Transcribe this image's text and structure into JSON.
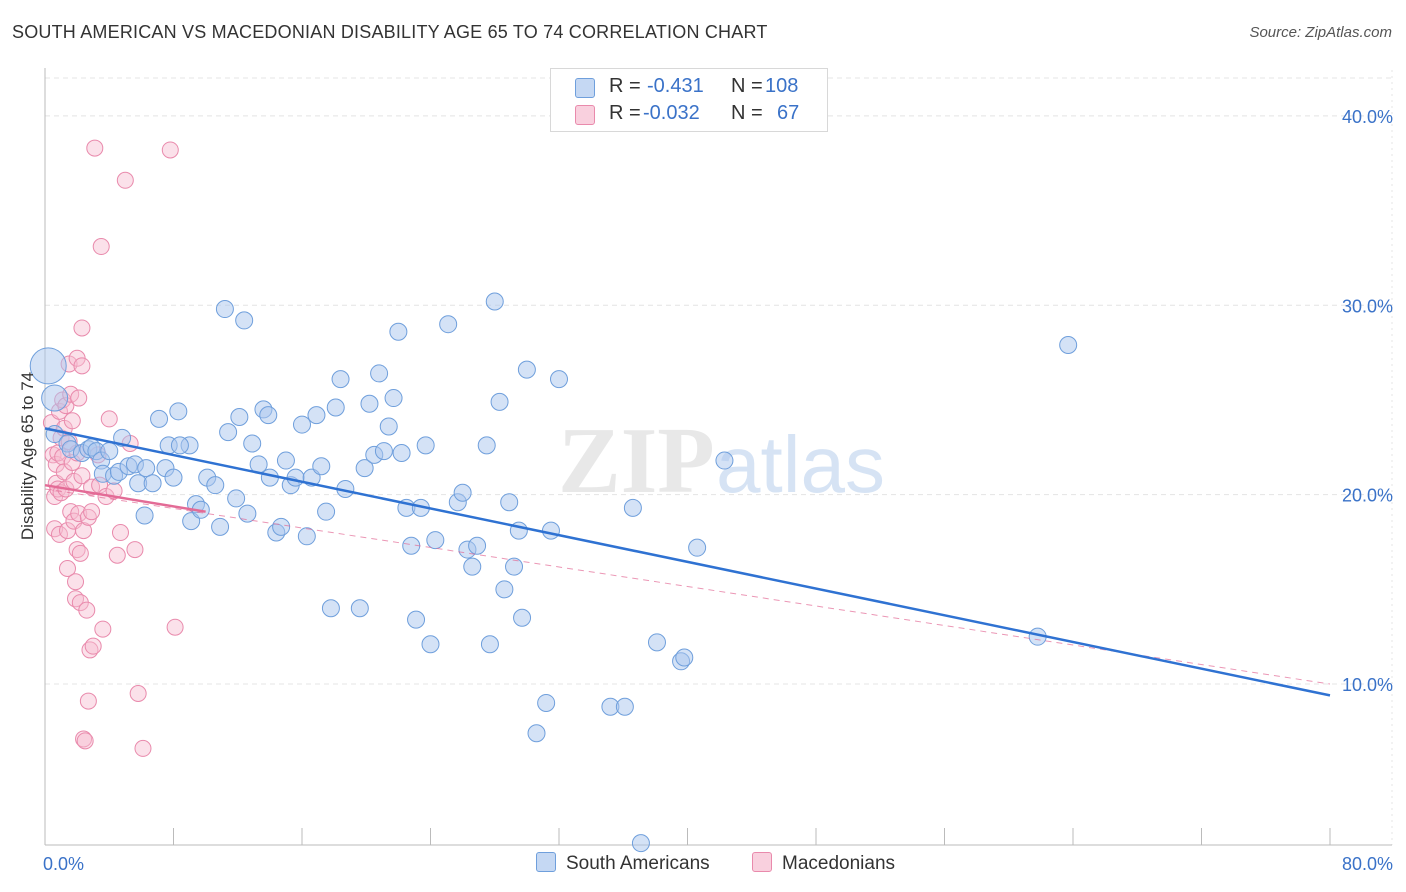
{
  "title": "SOUTH AMERICAN VS MACEDONIAN DISABILITY AGE 65 TO 74 CORRELATION CHART",
  "source": "Source: ZipAtlas.com",
  "watermark": {
    "zip": "ZIP",
    "atlas": "atlas"
  },
  "legend_top": {
    "rows": [
      {
        "r_label": "R =",
        "r_value": "-0.431",
        "n_label": "N =",
        "n_value": "108"
      },
      {
        "r_label": "R =",
        "r_value": "-0.032",
        "n_label": "N =",
        "n_value": "67"
      }
    ]
  },
  "legend_bottom": {
    "series1": "South Americans",
    "series2": "Macedonians"
  },
  "colors": {
    "blue_fill": "#aac6ee",
    "blue_stroke": "#6f9fdc",
    "blue_line": "#2f72d2",
    "pink_fill": "#f6bcd0",
    "pink_stroke": "#e98aac",
    "pink_line": "#e36b96",
    "axis_text": "#3a72c8",
    "grid": "#e4e4e4"
  },
  "chart_data": {
    "type": "scatter",
    "title": "SOUTH AMERICAN VS MACEDONIAN DISABILITY AGE 65 TO 74 CORRELATION CHART",
    "xlabel": "",
    "ylabel": "Disability Age 65 to 74",
    "xlim": [
      0,
      80
    ],
    "ylim": [
      1.5,
      42
    ],
    "x_tick_labels": [
      "0.0%",
      "80.0%"
    ],
    "y_ticks": [
      10,
      20,
      30,
      40
    ],
    "y_tick_labels": [
      "10.0%",
      "20.0%",
      "30.0%",
      "40.0%"
    ],
    "legend_position": "top-center",
    "series": [
      {
        "name": "South Americans",
        "color": "#6f9fdc",
        "r": -0.431,
        "n": 108,
        "trend": {
          "x": [
            0,
            80
          ],
          "y": [
            23.5,
            9.4
          ]
        },
        "points": [
          [
            0.2,
            26.8
          ],
          [
            0.6,
            25.1
          ],
          [
            0.6,
            23.2
          ],
          [
            1.4,
            22.7
          ],
          [
            1.6,
            22.4
          ],
          [
            2.3,
            22.2
          ],
          [
            2.7,
            22.4
          ],
          [
            2.9,
            22.5
          ],
          [
            3.2,
            22.3
          ],
          [
            3.5,
            21.8
          ],
          [
            3.6,
            21.1
          ],
          [
            4.3,
            21.0
          ],
          [
            4.6,
            21.2
          ],
          [
            4.8,
            23.0
          ],
          [
            5.2,
            21.5
          ],
          [
            5.6,
            21.6
          ],
          [
            5.8,
            20.6
          ],
          [
            6.2,
            18.9
          ],
          [
            6.3,
            21.4
          ],
          [
            6.7,
            20.6
          ],
          [
            7.1,
            24.0
          ],
          [
            7.5,
            21.4
          ],
          [
            7.7,
            22.6
          ],
          [
            8.0,
            20.9
          ],
          [
            8.3,
            24.4
          ],
          [
            9.0,
            22.6
          ],
          [
            9.1,
            18.6
          ],
          [
            9.4,
            19.5
          ],
          [
            9.7,
            19.2
          ],
          [
            10.1,
            20.9
          ],
          [
            10.6,
            20.5
          ],
          [
            10.9,
            18.3
          ],
          [
            11.2,
            29.8
          ],
          [
            11.4,
            23.3
          ],
          [
            11.9,
            19.8
          ],
          [
            12.1,
            24.1
          ],
          [
            12.4,
            29.2
          ],
          [
            12.6,
            19.0
          ],
          [
            12.9,
            22.7
          ],
          [
            13.3,
            21.6
          ],
          [
            13.6,
            24.5
          ],
          [
            13.9,
            24.2
          ],
          [
            14.4,
            18.0
          ],
          [
            14.7,
            18.3
          ],
          [
            15.0,
            21.8
          ],
          [
            15.3,
            20.5
          ],
          [
            15.6,
            20.9
          ],
          [
            16.0,
            23.7
          ],
          [
            16.3,
            17.8
          ],
          [
            16.6,
            20.9
          ],
          [
            16.9,
            24.2
          ],
          [
            17.2,
            21.5
          ],
          [
            17.5,
            19.1
          ],
          [
            17.8,
            14.0
          ],
          [
            18.1,
            24.6
          ],
          [
            18.4,
            26.1
          ],
          [
            18.7,
            20.3
          ],
          [
            19.6,
            14.0
          ],
          [
            19.9,
            21.4
          ],
          [
            20.2,
            24.8
          ],
          [
            20.5,
            22.1
          ],
          [
            20.8,
            26.4
          ],
          [
            21.1,
            22.3
          ],
          [
            21.4,
            23.6
          ],
          [
            21.7,
            25.1
          ],
          [
            22.0,
            28.6
          ],
          [
            22.2,
            22.2
          ],
          [
            22.5,
            19.3
          ],
          [
            22.8,
            17.3
          ],
          [
            23.1,
            13.4
          ],
          [
            23.4,
            19.3
          ],
          [
            23.7,
            22.6
          ],
          [
            24.0,
            12.1
          ],
          [
            24.3,
            17.6
          ],
          [
            25.1,
            29.0
          ],
          [
            25.7,
            19.6
          ],
          [
            26.0,
            20.1
          ],
          [
            26.3,
            17.1
          ],
          [
            26.6,
            16.2
          ],
          [
            26.9,
            17.3
          ],
          [
            27.5,
            22.6
          ],
          [
            27.7,
            12.1
          ],
          [
            28.0,
            30.2
          ],
          [
            28.3,
            24.9
          ],
          [
            28.6,
            15.0
          ],
          [
            28.9,
            19.6
          ],
          [
            29.2,
            16.2
          ],
          [
            29.5,
            18.1
          ],
          [
            29.7,
            13.5
          ],
          [
            30.0,
            26.6
          ],
          [
            30.6,
            7.4
          ],
          [
            31.2,
            9.0
          ],
          [
            31.5,
            18.1
          ],
          [
            32.0,
            26.1
          ],
          [
            35.2,
            8.8
          ],
          [
            36.1,
            8.8
          ],
          [
            36.6,
            19.3
          ],
          [
            37.1,
            1.6
          ],
          [
            38.1,
            12.2
          ],
          [
            39.6,
            11.2
          ],
          [
            39.8,
            11.4
          ],
          [
            40.6,
            17.2
          ],
          [
            42.3,
            21.8
          ],
          [
            61.8,
            12.5
          ],
          [
            63.7,
            27.9
          ],
          [
            4.0,
            22.3
          ],
          [
            8.4,
            22.6
          ],
          [
            14.0,
            20.9
          ]
        ]
      },
      {
        "name": "Macedonians",
        "color": "#e98aac",
        "r": -0.032,
        "n": 67,
        "trend": {
          "x": [
            0,
            10
          ],
          "y": [
            20.5,
            19.1
          ]
        },
        "trend_extended": {
          "x": [
            0,
            80
          ],
          "y": [
            20.3,
            10.0
          ]
        },
        "points": [
          [
            0.4,
            23.8
          ],
          [
            0.5,
            22.1
          ],
          [
            0.6,
            19.9
          ],
          [
            0.6,
            18.2
          ],
          [
            0.7,
            21.6
          ],
          [
            0.7,
            20.6
          ],
          [
            0.8,
            22.2
          ],
          [
            0.8,
            20.3
          ],
          [
            0.9,
            24.4
          ],
          [
            0.9,
            17.9
          ],
          [
            1.0,
            23.0
          ],
          [
            1.0,
            20.1
          ],
          [
            1.1,
            25.0
          ],
          [
            1.1,
            22.0
          ],
          [
            1.2,
            23.5
          ],
          [
            1.2,
            21.2
          ],
          [
            1.3,
            24.7
          ],
          [
            1.3,
            20.3
          ],
          [
            1.4,
            18.1
          ],
          [
            1.4,
            16.1
          ],
          [
            1.5,
            26.9
          ],
          [
            1.5,
            22.8
          ],
          [
            1.6,
            25.3
          ],
          [
            1.6,
            19.1
          ],
          [
            1.7,
            23.9
          ],
          [
            1.7,
            21.7
          ],
          [
            1.8,
            20.7
          ],
          [
            1.8,
            18.6
          ],
          [
            1.9,
            15.4
          ],
          [
            1.9,
            14.5
          ],
          [
            2.0,
            27.2
          ],
          [
            2.0,
            22.2
          ],
          [
            2.0,
            17.1
          ],
          [
            2.1,
            25.1
          ],
          [
            2.1,
            19.0
          ],
          [
            2.2,
            16.9
          ],
          [
            2.2,
            14.3
          ],
          [
            2.3,
            28.8
          ],
          [
            2.3,
            26.8
          ],
          [
            2.3,
            21.0
          ],
          [
            2.4,
            18.1
          ],
          [
            2.4,
            7.1
          ],
          [
            2.5,
            7.0
          ],
          [
            2.6,
            13.9
          ],
          [
            2.7,
            18.8
          ],
          [
            2.7,
            9.1
          ],
          [
            2.8,
            11.8
          ],
          [
            2.9,
            20.4
          ],
          [
            2.9,
            19.1
          ],
          [
            3.0,
            12.0
          ],
          [
            3.1,
            38.3
          ],
          [
            3.3,
            22.1
          ],
          [
            3.4,
            20.5
          ],
          [
            3.5,
            33.1
          ],
          [
            3.6,
            12.9
          ],
          [
            3.8,
            19.9
          ],
          [
            4.0,
            24.0
          ],
          [
            4.3,
            20.2
          ],
          [
            4.5,
            16.8
          ],
          [
            4.7,
            18.0
          ],
          [
            5.0,
            36.6
          ],
          [
            5.3,
            22.7
          ],
          [
            5.6,
            17.1
          ],
          [
            5.8,
            9.5
          ],
          [
            6.1,
            6.6
          ],
          [
            7.8,
            38.2
          ],
          [
            8.1,
            13.0
          ]
        ]
      }
    ]
  }
}
